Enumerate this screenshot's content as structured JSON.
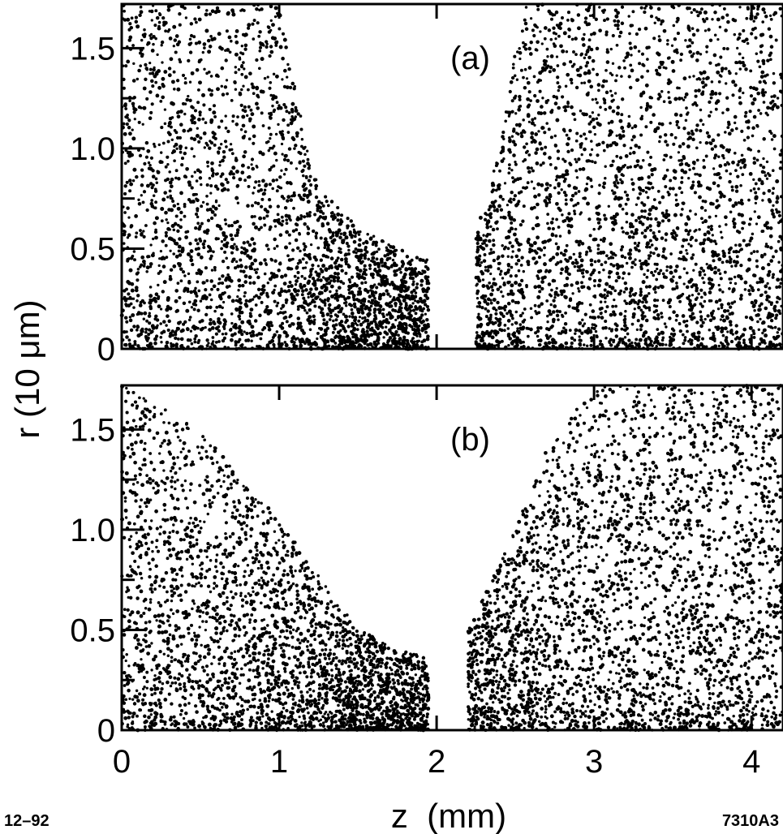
{
  "chart_data": [
    {
      "type": "scatter",
      "panel_label": "(a)",
      "xlim": [
        0,
        4.2
      ],
      "ylim": [
        0,
        1.72
      ],
      "x_ticks": [
        0,
        1,
        2,
        3,
        4
      ],
      "y_ticks": [
        0,
        0.5,
        1.0,
        1.5
      ],
      "y_tick_labels": [
        "0",
        "0.5",
        "1.0",
        "1.5"
      ],
      "regions": [
        {
          "name": "left cloud",
          "x_range": [
            0.0,
            1.95
          ],
          "density_profile": "dense near axis, sparse at large r, thinning toward z≈1.9",
          "r_envelope": [
            [
              0.0,
              1.72
            ],
            [
              1.0,
              1.72
            ],
            [
              1.2,
              0.9
            ],
            [
              1.5,
              0.6
            ],
            [
              1.9,
              0.45
            ]
          ]
        },
        {
          "name": "gap",
          "x_range": [
            1.95,
            2.25
          ],
          "note": "particle-free region"
        },
        {
          "name": "right cloud",
          "x_range": [
            2.25,
            4.2
          ],
          "density_profile": "dense throughout",
          "r_envelope": [
            [
              2.25,
              0.6
            ],
            [
              2.4,
              1.0
            ],
            [
              2.55,
              1.72
            ],
            [
              4.2,
              1.72
            ]
          ]
        }
      ]
    },
    {
      "type": "scatter",
      "panel_label": "(b)",
      "xlim": [
        0,
        4.2
      ],
      "ylim": [
        0,
        1.72
      ],
      "x_ticks": [
        0,
        1,
        2,
        3,
        4
      ],
      "x_tick_labels": [
        "0",
        "1",
        "2",
        "3",
        "4"
      ],
      "y_ticks": [
        0,
        0.5,
        1.0,
        1.5
      ],
      "y_tick_labels": [
        "0",
        "0.5",
        "1.0",
        "1.5"
      ],
      "regions": [
        {
          "name": "left cloud",
          "x_range": [
            0.0,
            1.95
          ],
          "density_profile": "upper envelope decreasing with z",
          "r_envelope": [
            [
              0.0,
              1.72
            ],
            [
              0.5,
              1.5
            ],
            [
              1.0,
              1.05
            ],
            [
              1.5,
              0.5
            ],
            [
              1.95,
              0.35
            ]
          ]
        },
        {
          "name": "gap",
          "x_range": [
            1.95,
            2.2
          ],
          "note": "particle-free region"
        },
        {
          "name": "right cloud",
          "x_range": [
            2.2,
            4.2
          ],
          "density_profile": "striated columns near gap, dense beyond",
          "r_envelope": [
            [
              2.2,
              0.5
            ],
            [
              2.5,
              1.0
            ],
            [
              2.7,
              1.4
            ],
            [
              3.0,
              1.72
            ],
            [
              4.2,
              1.72
            ]
          ]
        }
      ]
    }
  ],
  "xlabel": "z  (mm)",
  "ylabel": "r  (10 μm)",
  "corner_left": "12–92",
  "corner_right": "7310A3"
}
